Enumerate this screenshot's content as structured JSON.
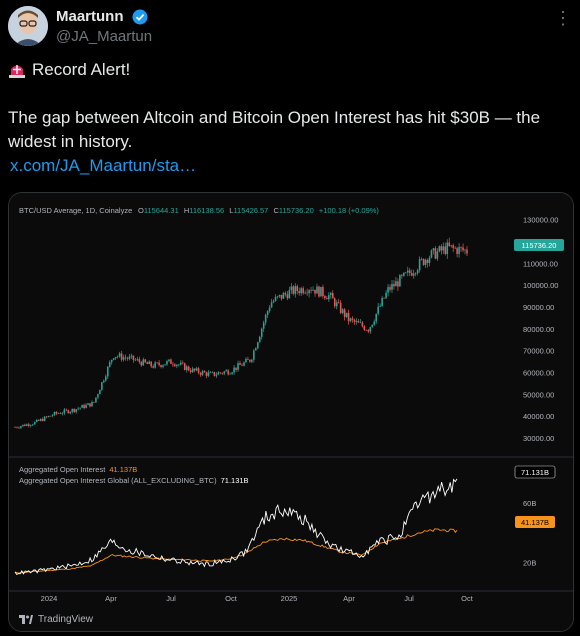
{
  "author": {
    "name": "Maartunn",
    "handle": "@JA_Maartun"
  },
  "tweet": {
    "alert_text": "Record Alert!",
    "body": "The gap between Altcoin and Bitcoin Open Interest has hit $30B — the widest in history.",
    "link": "x.com/JA_Maartun/sta…"
  },
  "chart_data": [
    {
      "type": "line",
      "title": "BTC/USD Average, 1D, Coinalyze",
      "ohlc": {
        "o_label": "O",
        "o": "115644.31",
        "h_label": "H",
        "h": "116138.56",
        "l_label": "L",
        "l": "115426.57",
        "c_label": "C",
        "c": "115736.20",
        "change": "+100.18 (+0.09%)"
      },
      "last_value": "115736.20",
      "y_ticks": [
        "130000.00",
        "120000.00",
        "110000.00",
        "100000.00",
        "90000.00",
        "80000.00",
        "70000.00",
        "60000.00",
        "50000.00",
        "40000.00",
        "30000.00"
      ],
      "ylim": [
        25000,
        133000
      ],
      "x": [
        "2023-10",
        "2023-11",
        "2023-12",
        "2024-01",
        "2024-02",
        "2024-03",
        "2024-04",
        "2024-05",
        "2024-06",
        "2024-07",
        "2024-08",
        "2024-09",
        "2024-10",
        "2024-11",
        "2024-12",
        "2025-01",
        "2025-02",
        "2025-03",
        "2025-04",
        "2025-05",
        "2025-06",
        "2025-07",
        "2025-08",
        "2025-09"
      ],
      "series": [
        {
          "values": [
            35000,
            37000,
            41000,
            43000,
            46000,
            68000,
            66000,
            63000,
            65000,
            61000,
            59000,
            61000,
            66000,
            92000,
            97000,
            99000,
            95000,
            84000,
            80000,
            98000,
            105000,
            113000,
            117000,
            115700
          ]
        }
      ]
    },
    {
      "type": "line",
      "series": [
        {
          "name": "Aggregated Open Interest",
          "last": "41.137B",
          "color": "#f7931a",
          "values": [
            13,
            14,
            15,
            16,
            18,
            25,
            24,
            23,
            22,
            22,
            21,
            22,
            26,
            34,
            36,
            35,
            31,
            27,
            25,
            33,
            36,
            40,
            42,
            41.137
          ]
        },
        {
          "name": "Aggregated Open Interest Global (ALL_EXCLUDING_BTC)",
          "last": "71.131B",
          "color": "#ffffff",
          "values": [
            13,
            14,
            16,
            18,
            22,
            34,
            28,
            25,
            22,
            20,
            19,
            21,
            27,
            50,
            56,
            49,
            36,
            28,
            25,
            34,
            38,
            60,
            68,
            71.131
          ]
        }
      ],
      "y_ticks": [
        "60B",
        "20B"
      ],
      "ylim": [
        5,
        80
      ],
      "x_ticks": [
        "2024",
        "Apr",
        "Jul",
        "Oct",
        "2025",
        "Apr",
        "Jul",
        "Oct"
      ]
    }
  ],
  "footer": {
    "brand": "TradingView"
  }
}
